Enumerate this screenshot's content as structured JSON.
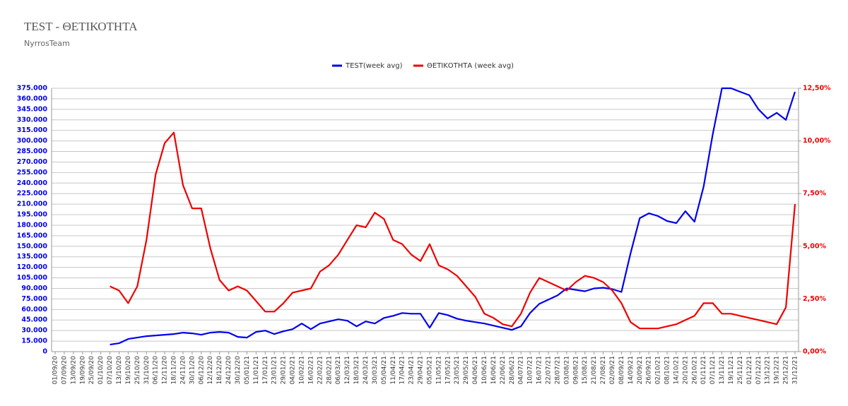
{
  "chart_data": {
    "type": "line",
    "title": "TEST - ΘΕΤΙΚΟΤΗΤΑ",
    "subtitle": "NyrrosTeam",
    "categories": [
      "01/09/20",
      "07/09/20",
      "13/09/20",
      "19/09/20",
      "25/09/20",
      "01/10/20",
      "07/10/20",
      "13/10/20",
      "19/10/20",
      "25/10/20",
      "31/10/20",
      "06/11/20",
      "12/11/20",
      "18/11/20",
      "24/11/20",
      "30/11/20",
      "06/12/20",
      "12/12/20",
      "18/12/20",
      "24/12/20",
      "30/12/20",
      "05/01/21",
      "11/01/21",
      "17/01/21",
      "23/01/21",
      "29/01/21",
      "04/02/21",
      "10/02/21",
      "16/02/21",
      "22/02/21",
      "28/02/21",
      "06/03/21",
      "12/03/21",
      "18/03/21",
      "24/03/21",
      "30/03/21",
      "05/04/21",
      "11/04/21",
      "17/04/21",
      "23/04/21",
      "29/04/21",
      "05/05/21",
      "11/05/21",
      "17/05/21",
      "23/05/21",
      "29/05/21",
      "04/06/21",
      "10/06/21",
      "16/06/21",
      "22/06/21",
      "28/06/21",
      "04/07/21",
      "10/07/21",
      "16/07/21",
      "22/07/21",
      "28/07/21",
      "03/08/21",
      "09/08/21",
      "15/08/21",
      "21/08/21",
      "27/08/21",
      "02/09/21",
      "08/09/21",
      "14/09/21",
      "20/09/21",
      "26/09/21",
      "02/10/21",
      "08/10/21",
      "14/10/21",
      "20/10/21",
      "26/10/21",
      "01/11/21",
      "07/11/21",
      "13/11/21",
      "19/11/21",
      "25/11/21",
      "01/12/21",
      "07/12/21",
      "13/12/21",
      "19/12/21",
      "25/12/21",
      "31/12/21"
    ],
    "series": [
      {
        "name": "TEST(week avg)",
        "color": "#0000ee",
        "axis": "y",
        "values": [
          null,
          null,
          null,
          null,
          null,
          null,
          10000,
          12000,
          18000,
          20000,
          22000,
          23000,
          24000,
          25000,
          27000,
          26000,
          24000,
          27000,
          28000,
          27000,
          21000,
          20000,
          28000,
          30000,
          25000,
          29000,
          32000,
          40000,
          32000,
          40000,
          43000,
          46000,
          44000,
          36000,
          43000,
          40000,
          48000,
          51000,
          55000,
          54000,
          54000,
          34000,
          55000,
          52000,
          47000,
          44000,
          42000,
          40000,
          37000,
          34000,
          31000,
          36000,
          55000,
          68000,
          74000,
          80000,
          90000,
          88000,
          86000,
          90000,
          91000,
          89000,
          85000,
          140000,
          190000,
          197000,
          193000,
          186000,
          183000,
          200000,
          185000,
          235000,
          310000,
          375000,
          375000,
          370000,
          365000,
          345000,
          332000,
          340000,
          330000,
          370000
        ]
      },
      {
        "name": "ΘΕΤΙΚΟΤΗΤΑ (week avg)",
        "color": "#ee0000",
        "axis": "y2",
        "values": [
          null,
          null,
          null,
          null,
          null,
          null,
          3.1,
          2.9,
          2.3,
          3.1,
          5.3,
          8.4,
          9.9,
          10.4,
          7.9,
          6.8,
          6.8,
          4.9,
          3.4,
          2.9,
          3.1,
          2.9,
          2.4,
          1.9,
          1.9,
          2.3,
          2.8,
          2.9,
          3.0,
          3.8,
          4.1,
          4.6,
          5.3,
          6.0,
          5.9,
          6.6,
          6.3,
          5.3,
          5.1,
          4.6,
          4.3,
          5.1,
          4.1,
          3.9,
          3.6,
          3.1,
          2.6,
          1.8,
          1.6,
          1.3,
          1.2,
          1.8,
          2.8,
          3.5,
          3.3,
          3.1,
          2.9,
          3.3,
          3.6,
          3.5,
          3.3,
          2.9,
          2.3,
          1.4,
          1.1,
          1.1,
          1.1,
          1.2,
          1.3,
          1.5,
          1.7,
          2.3,
          2.3,
          1.8,
          1.8,
          1.7,
          1.6,
          1.5,
          1.4,
          1.3,
          2.1,
          7.0
        ]
      }
    ],
    "ylim": [
      0,
      375000
    ],
    "yticks": [
      0,
      {
        "value": 15000,
        "label": "15.000"
      },
      {
        "value": 30000,
        "label": "30.000"
      },
      {
        "value": 45000,
        "label": "45.000"
      },
      {
        "value": 60000,
        "label": "60.000"
      },
      {
        "value": 75000,
        "label": "75.000"
      },
      {
        "value": 90000,
        "label": "90.000"
      },
      {
        "value": 105000,
        "label": "105.000"
      },
      {
        "value": 120000,
        "label": "120.000"
      },
      {
        "value": 135000,
        "label": "135.000"
      },
      {
        "value": 150000,
        "label": "150.000"
      },
      {
        "value": 165000,
        "label": "165.000"
      },
      {
        "value": 180000,
        "label": "180.000"
      },
      {
        "value": 195000,
        "label": "195.000"
      },
      {
        "value": 210000,
        "label": "210.000"
      },
      {
        "value": 225000,
        "label": "225.000"
      },
      {
        "value": 240000,
        "label": "240.000"
      },
      {
        "value": 255000,
        "label": "255.000"
      },
      {
        "value": 270000,
        "label": "270.000"
      },
      {
        "value": 285000,
        "label": "285.000"
      },
      {
        "value": 300000,
        "label": "300.000"
      },
      {
        "value": 315000,
        "label": "315.000"
      },
      {
        "value": 330000,
        "label": "330.000"
      },
      {
        "value": 345000,
        "label": "345.000"
      },
      {
        "value": 360000,
        "label": "360.000"
      },
      {
        "value": 375000,
        "label": "375.000"
      }
    ],
    "y2lim": [
      0,
      12.5
    ],
    "y2ticks": [
      {
        "value": 0,
        "label": "0,00%"
      },
      {
        "value": 2.5,
        "label": "2,50%"
      },
      {
        "value": 5,
        "label": "5,00%"
      },
      {
        "value": 7.5,
        "label": "7,50%"
      },
      {
        "value": 10,
        "label": "10,00%"
      },
      {
        "value": 12.5,
        "label": "12,50%"
      }
    ],
    "grid": true,
    "legend": "top"
  }
}
